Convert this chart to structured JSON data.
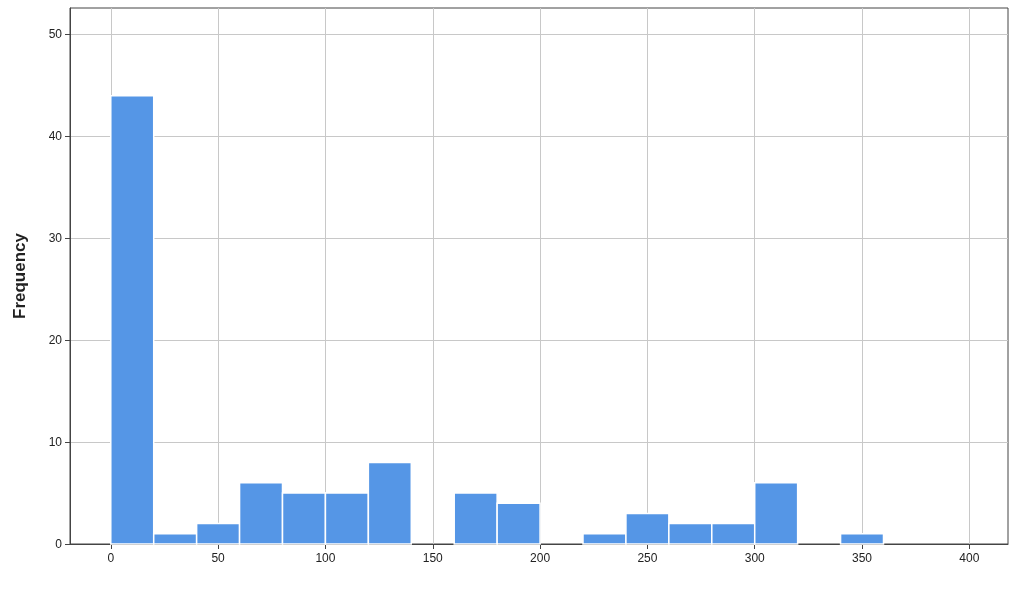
{
  "chart_data": {
    "type": "histogram",
    "ylabel": "Frequency",
    "bins": [
      0,
      20,
      40,
      60,
      80,
      100,
      120,
      140,
      160,
      180,
      200,
      220,
      240,
      260,
      280,
      300,
      320,
      340,
      360
    ],
    "values": [
      44,
      1,
      2,
      6,
      5,
      5,
      8,
      0,
      5,
      4,
      0,
      1,
      3,
      2,
      2,
      6,
      0,
      1
    ],
    "color": "#5596e6",
    "xlim": [
      -19,
      418
    ],
    "xticks": [
      0,
      50,
      100,
      150,
      200,
      250,
      300,
      350,
      400
    ],
    "ylim": [
      0,
      52.6
    ],
    "yticks": [
      0,
      10,
      20,
      30,
      40,
      50
    ],
    "grid": true
  }
}
